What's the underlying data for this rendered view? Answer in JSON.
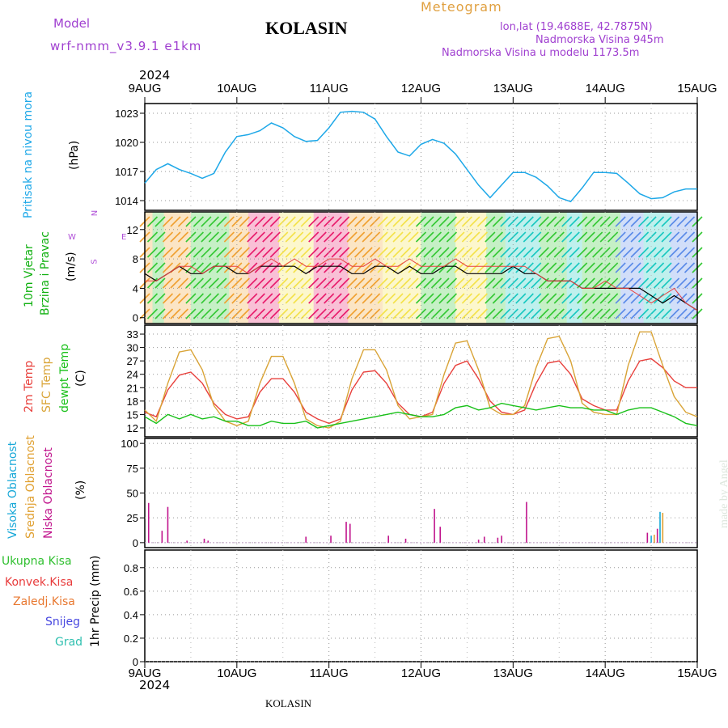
{
  "header": {
    "model_label": "Model",
    "model_name": "wrf-nmm_v3.9.1 e1km",
    "title": "KOLASIN",
    "meteogram_label": "Meteogram",
    "lonlat": "lon,lat (19.4688E, 42.7875N)",
    "altitude": "Nadmorska Visina 945m",
    "altitude_model": "Nadmorska Visina u modelu 1173.5m"
  },
  "footer": {
    "station": "KOLASIN",
    "credit": "made by Angel"
  },
  "axis_year": "2024",
  "colors": {
    "pressure": "#1ea8e8",
    "temp2m": "#e8403c",
    "sfc_temp": "#d9a437",
    "dewpoint": "#18c018",
    "high_cloud": "#18a8d8",
    "mid_cloud": "#e0a030",
    "low_cloud": "#c0148c",
    "wind_label": "#10b010",
    "compass": "#b050d8",
    "title_purple": "#a040d0",
    "orange": "#e0a040"
  },
  "panel_labels": {
    "pressure": {
      "l1": "Pritisak na nivou mora",
      "unit": "(hPa)"
    },
    "wind": {
      "l1": "10m Vjetar",
      "l2": "Brzina i Pravac",
      "unit": "(m/s)"
    },
    "compass": {
      "n": "N",
      "s": "S",
      "e": "E",
      "w": "W"
    },
    "temp": {
      "l1": "2m Temp",
      "l2": "SFC Temp",
      "l3": "dewpt Temp",
      "unit": "(C)"
    },
    "cloud": {
      "l1": "Visoka Oblacnost",
      "l2": "Srednja Oblacnost",
      "l3": "Niska Oblacnost",
      "unit": "(%)"
    },
    "precip": {
      "unit": "1hr Precip (mm)"
    },
    "precip_legend": [
      "Ukupna Kisa",
      "Konvek.Kisa",
      "Zaledj.Kisa",
      "Snijeg",
      "Grad"
    ],
    "precip_legend_colors": [
      "#30c030",
      "#e83c3c",
      "#e87830",
      "#4848e0",
      "#30c0b0"
    ]
  },
  "chart_data": [
    {
      "type": "line",
      "name": "pressure",
      "x_categories": [
        "9AUG",
        "10AUG",
        "11AUG",
        "12AUG",
        "13AUG",
        "14AUG",
        "15AUG"
      ],
      "x_hours": [
        0,
        3,
        6,
        9,
        12,
        15,
        18,
        21,
        24,
        27,
        30,
        33,
        36,
        39,
        42,
        45,
        48,
        51,
        54,
        57,
        60,
        63,
        66,
        69,
        72,
        75,
        78,
        81,
        84,
        87,
        90,
        93,
        96,
        99,
        102,
        105,
        108,
        111,
        114,
        117,
        120,
        123,
        126,
        129,
        132,
        135,
        138,
        141,
        144
      ],
      "values": [
        1015.8,
        1017.2,
        1017.8,
        1017.2,
        1016.8,
        1016.3,
        1016.8,
        1019.0,
        1020.6,
        1020.8,
        1021.2,
        1022.0,
        1021.5,
        1020.6,
        1020.1,
        1020.2,
        1021.5,
        1023.1,
        1023.2,
        1023.1,
        1022.4,
        1020.6,
        1019.0,
        1018.6,
        1019.8,
        1020.3,
        1019.9,
        1018.8,
        1017.2,
        1015.6,
        1014.3,
        1015.6,
        1016.9,
        1016.9,
        1016.4,
        1015.5,
        1014.3,
        1013.9,
        1015.3,
        1016.9,
        1016.9,
        1016.8,
        1015.8,
        1014.7,
        1014.2,
        1014.3,
        1014.9,
        1015.2,
        1015.2
      ],
      "yticks": [
        1014,
        1017,
        1020,
        1023
      ],
      "ylim": [
        1013,
        1024
      ]
    },
    {
      "type": "line",
      "name": "wind",
      "x_hours": [
        0,
        3,
        6,
        9,
        12,
        15,
        18,
        21,
        24,
        27,
        30,
        33,
        36,
        39,
        42,
        45,
        48,
        51,
        54,
        57,
        60,
        63,
        66,
        69,
        72,
        75,
        78,
        81,
        84,
        87,
        90,
        93,
        96,
        99,
        102,
        105,
        108,
        111,
        114,
        117,
        120,
        123,
        126,
        129,
        132,
        135,
        138,
        141,
        144
      ],
      "speed": [
        6,
        5,
        6,
        7,
        6,
        6,
        7,
        7,
        6,
        6,
        7,
        7,
        7,
        7,
        6,
        7,
        7,
        7,
        6,
        6,
        7,
        7,
        6,
        7,
        6,
        6,
        7,
        7,
        6,
        6,
        6,
        6,
        7,
        6,
        6,
        5,
        5,
        5,
        4,
        4,
        4,
        4,
        4,
        4,
        3,
        2,
        3,
        2,
        1
      ],
      "gust": [
        5,
        5,
        6,
        7,
        7,
        6,
        7,
        7,
        7,
        6,
        7,
        8,
        7,
        8,
        7,
        7,
        8,
        8,
        7,
        7,
        8,
        7,
        7,
        8,
        7,
        7,
        7,
        8,
        7,
        7,
        7,
        7,
        7,
        7,
        6,
        5,
        5,
        5,
        4,
        4,
        5,
        4,
        4,
        3,
        2,
        3,
        4,
        2,
        1
      ],
      "yticks": [
        0,
        4,
        8,
        12
      ],
      "ylim": [
        -0.8,
        14.4
      ]
    },
    {
      "type": "line",
      "name": "temperature",
      "series": [
        {
          "name": "2m Temp",
          "values": [
            15.5,
            14.5,
            20.5,
            23.8,
            24.5,
            22.0,
            17.5,
            15.0,
            14.0,
            14.5,
            20.0,
            23.0,
            23.0,
            20.0,
            15.5,
            14.0,
            13.0,
            14.0,
            20.5,
            24.5,
            24.8,
            22.0,
            17.5,
            15.0,
            14.5,
            15.5,
            22.0,
            26.0,
            27.0,
            23.0,
            18.0,
            15.5,
            15.0,
            16.0,
            22.0,
            26.5,
            27.0,
            24.0,
            18.5,
            17.0,
            16.0,
            16.0,
            22.5,
            27.0,
            27.5,
            25.5,
            22.5,
            21.0,
            21.0
          ]
        },
        {
          "name": "SFC Temp",
          "values": [
            16.0,
            13.5,
            22.0,
            29.0,
            29.5,
            25.0,
            17.0,
            13.5,
            12.5,
            13.5,
            22.0,
            28.0,
            28.0,
            22.0,
            14.0,
            12.5,
            12.0,
            13.5,
            23.0,
            29.5,
            29.5,
            25.0,
            17.0,
            14.0,
            14.5,
            15.0,
            24.0,
            31.0,
            31.5,
            25.0,
            16.5,
            15.0,
            15.0,
            17.0,
            25.5,
            32.0,
            32.5,
            27.0,
            17.5,
            15.5,
            15.0,
            15.0,
            26.0,
            33.5,
            33.5,
            26.0,
            19.0,
            15.5,
            14.5
          ]
        },
        {
          "name": "dewpt Temp",
          "values": [
            14.5,
            13.0,
            15.0,
            14.0,
            15.0,
            14.0,
            14.5,
            13.5,
            13.5,
            12.5,
            12.5,
            13.5,
            13.0,
            13.0,
            13.5,
            12.0,
            12.5,
            13.0,
            13.5,
            14.0,
            14.5,
            15.0,
            15.5,
            15.0,
            14.5,
            14.5,
            15.0,
            16.5,
            17.0,
            16.0,
            16.5,
            17.5,
            17.0,
            16.5,
            16.0,
            16.5,
            17.0,
            16.5,
            16.5,
            16.0,
            16.0,
            15.0,
            16.0,
            16.5,
            16.5,
            15.5,
            14.5,
            13.0,
            12.5
          ]
        }
      ],
      "yticks": [
        12,
        15,
        18,
        21,
        24,
        27,
        30,
        33
      ],
      "ylim": [
        10,
        35
      ]
    },
    {
      "type": "bar",
      "name": "cloud",
      "bars": [
        {
          "h": 1,
          "v": 40,
          "layer": "low"
        },
        {
          "h": 4.5,
          "v": 12,
          "layer": "low"
        },
        {
          "h": 6,
          "v": 36,
          "layer": "low"
        },
        {
          "h": 11,
          "v": 2,
          "layer": "low"
        },
        {
          "h": 15.5,
          "v": 4,
          "layer": "low"
        },
        {
          "h": 16.5,
          "v": 2,
          "layer": "low"
        },
        {
          "h": 42,
          "v": 6,
          "layer": "low"
        },
        {
          "h": 48.5,
          "v": 7,
          "layer": "low"
        },
        {
          "h": 52.5,
          "v": 21,
          "layer": "low"
        },
        {
          "h": 53.5,
          "v": 19,
          "layer": "low"
        },
        {
          "h": 63.5,
          "v": 7,
          "layer": "low"
        },
        {
          "h": 68,
          "v": 4,
          "layer": "low"
        },
        {
          "h": 75.5,
          "v": 34,
          "layer": "low"
        },
        {
          "h": 77,
          "v": 16,
          "layer": "low"
        },
        {
          "h": 87,
          "v": 3,
          "layer": "low"
        },
        {
          "h": 88.5,
          "v": 6,
          "layer": "low"
        },
        {
          "h": 92,
          "v": 5,
          "layer": "low"
        },
        {
          "h": 93,
          "v": 7,
          "layer": "low"
        },
        {
          "h": 99.5,
          "v": 41,
          "layer": "low"
        },
        {
          "h": 131,
          "v": 10,
          "layer": "low"
        },
        {
          "h": 132,
          "v": 7,
          "layer": "high"
        },
        {
          "h": 132.8,
          "v": 8,
          "layer": "mid"
        },
        {
          "h": 133.6,
          "v": 14,
          "layer": "low"
        },
        {
          "h": 134.3,
          "v": 31,
          "layer": "high"
        },
        {
          "h": 135,
          "v": 30,
          "layer": "mid"
        }
      ],
      "yticks": [
        0,
        25,
        50,
        75,
        100
      ],
      "ylim": [
        -5,
        105
      ]
    },
    {
      "type": "bar",
      "name": "precip",
      "values": [],
      "yticks": [
        0,
        0.2,
        0.4,
        0.6,
        0.8
      ],
      "ylim": [
        0,
        0.95
      ]
    }
  ]
}
